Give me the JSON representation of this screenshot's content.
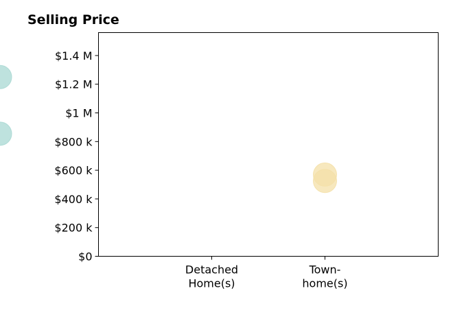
{
  "chart_data": {
    "type": "scatter",
    "title": "Selling Price",
    "xlabel": "",
    "ylabel": "",
    "categories": [
      [
        "Detached",
        "Home(s)"
      ],
      [
        "Town-",
        "home(s)"
      ]
    ],
    "xlim": [
      0,
      3
    ],
    "ylim": [
      0,
      1560000
    ],
    "yticks": [
      0,
      200000,
      400000,
      600000,
      800000,
      1000000,
      1200000,
      1400000
    ],
    "ytick_labels": [
      "$0",
      "$200 k",
      "$400 k",
      "$600 k",
      "$800 k",
      "$1 M",
      "$1.2 M",
      "$1.4 M"
    ],
    "grid": false,
    "series": [
      {
        "color": "#a8d8d3",
        "points": [
          {
            "category": "Detached Home(s)",
            "y": 1250000
          },
          {
            "category": "Detached Home(s)",
            "y": 855000
          }
        ]
      },
      {
        "color": "#f4e0a8",
        "points": [
          {
            "category": "Town-home(s)",
            "y": 570000
          },
          {
            "category": "Town-home(s)",
            "y": 525000
          }
        ]
      }
    ]
  }
}
